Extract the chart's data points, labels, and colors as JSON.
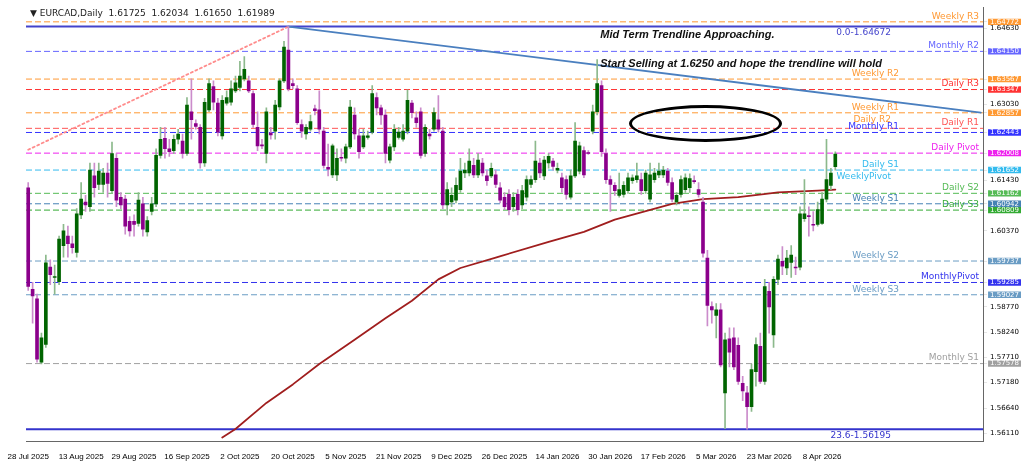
{
  "chart_data": {
    "type": "candlestick",
    "title": "▼ EURCAD,Daily  1.61725  1.62034  1.61650  1.61989",
    "categories": [
      "28 Jul 2025",
      null,
      null,
      null,
      null,
      null,
      null,
      null,
      null,
      null,
      null,
      null,
      "13 Aug 2025",
      null,
      null,
      null,
      null,
      null,
      null,
      null,
      null,
      null,
      null,
      null,
      "29 Aug 2025",
      null,
      null,
      null,
      null,
      null,
      null,
      null,
      null,
      null,
      null,
      null,
      "16 Sep 2025",
      null,
      null,
      null,
      null,
      null,
      null,
      null,
      null,
      null,
      null,
      null,
      "2 Oct 2025",
      null,
      null,
      null,
      null,
      null,
      null,
      null,
      null,
      null,
      null,
      null,
      "20 Oct 2025",
      null,
      null,
      null,
      null,
      null,
      null,
      null,
      null,
      null,
      null,
      null,
      "5 Nov 2025",
      null,
      null,
      null,
      null,
      null,
      null,
      null,
      null,
      null,
      null,
      null,
      "21 Nov 2025",
      null,
      null,
      null,
      null,
      null,
      null,
      null,
      null,
      null,
      null,
      null,
      "9 Dec 2025",
      null,
      null,
      null,
      null,
      null,
      null,
      null,
      null,
      null,
      null,
      null,
      "26 Dec 2025",
      null,
      null,
      null,
      null,
      null,
      null,
      null,
      null,
      null,
      null,
      null,
      "14 Jan 2026",
      null,
      null,
      null,
      null,
      null,
      null,
      null,
      null,
      null,
      null,
      null,
      "30 Jan 2026",
      null,
      null,
      null,
      null,
      null,
      null,
      null,
      null,
      null,
      null,
      null,
      "17 Feb 2026",
      null,
      null,
      null,
      null,
      null,
      null,
      null,
      null,
      null,
      null,
      null,
      "5 Mar 2026",
      null,
      null,
      null,
      null,
      null,
      null,
      null,
      null,
      null,
      null,
      null,
      "23 Mar 2026",
      null,
      null,
      null,
      null,
      null,
      null,
      null,
      null,
      null,
      null,
      null,
      "8 Apr 2026",
      null,
      null,
      null,
      null,
      null,
      null,
      null,
      null,
      null,
      null,
      null,
      null,
      null,
      null,
      null,
      null,
      null,
      null,
      null,
      null,
      null,
      null,
      null,
      null,
      null,
      null,
      null,
      null,
      null,
      null,
      null,
      null,
      null,
      null,
      null,
      null
    ],
    "ohlc": [
      [
        1.6128,
        1.6139,
        1.5912,
        1.592
      ],
      [
        1.5914,
        1.5929,
        1.5843,
        1.59
      ],
      [
        1.5894,
        1.5904,
        1.5761,
        1.5767
      ],
      [
        1.5761,
        1.5822,
        1.5757,
        1.5812
      ],
      [
        1.5798,
        1.5986,
        1.5792,
        1.597
      ],
      [
        1.5961,
        1.5976,
        1.5924,
        1.5945
      ],
      [
        1.5939,
        1.5965,
        1.5904,
        1.5941
      ],
      [
        1.593,
        1.6026,
        1.5924,
        1.602
      ],
      [
        1.6006,
        1.6051,
        1.5982,
        1.6037
      ],
      [
        1.6026,
        1.6047,
        1.5982,
        1.601
      ],
      [
        1.601,
        1.6026,
        1.599,
        1.6002
      ],
      [
        1.5992,
        1.6084,
        1.5982,
        1.6073
      ],
      [
        1.6071,
        1.6139,
        1.6063,
        1.6104
      ],
      [
        1.6098,
        1.6112,
        1.6078,
        1.6092
      ],
      [
        1.6088,
        1.618,
        1.6078,
        1.6165
      ],
      [
        1.6153,
        1.618,
        1.6108,
        1.6128
      ],
      [
        1.6135,
        1.618,
        1.6124,
        1.6163
      ],
      [
        1.6135,
        1.6169,
        1.6118,
        1.6159
      ],
      [
        1.6159,
        1.618,
        1.6108,
        1.6137
      ],
      [
        1.6122,
        1.6224,
        1.6116,
        1.62
      ],
      [
        1.619,
        1.62,
        1.6088,
        1.6102
      ],
      [
        1.6108,
        1.6118,
        1.6084,
        1.6092
      ],
      [
        1.6104,
        1.6112,
        1.603,
        1.6047
      ],
      [
        1.6057,
        1.6067,
        1.6026,
        1.6037
      ],
      [
        1.6057,
        1.6071,
        1.6026,
        1.6051
      ],
      [
        1.6053,
        1.6118,
        1.6047,
        1.6102
      ],
      [
        1.6094,
        1.6108,
        1.6026,
        1.6041
      ],
      [
        1.6035,
        1.6067,
        1.6026,
        1.6059
      ],
      [
        1.6078,
        1.6108,
        1.6071,
        1.6094
      ],
      [
        1.6094,
        1.621,
        1.6088,
        1.6196
      ],
      [
        1.6196,
        1.6255,
        1.619,
        1.623
      ],
      [
        1.6232,
        1.6255,
        1.619,
        1.621
      ],
      [
        1.621,
        1.623,
        1.6194,
        1.6204
      ],
      [
        1.6206,
        1.6239,
        1.62,
        1.623
      ],
      [
        1.623,
        1.6251,
        1.622,
        1.6241
      ],
      [
        1.6226,
        1.6241,
        1.619,
        1.62
      ],
      [
        1.62,
        1.6318,
        1.6196,
        1.6302
      ],
      [
        1.6288,
        1.6357,
        1.623,
        1.6271
      ],
      [
        1.6263,
        1.6271,
        1.6251,
        1.6257
      ],
      [
        1.6255,
        1.6261,
        1.6169,
        1.618
      ],
      [
        1.618,
        1.6316,
        1.6173,
        1.6308
      ],
      [
        1.6292,
        1.6357,
        1.6288,
        1.6347
      ],
      [
        1.6341,
        1.6353,
        1.6292,
        1.6308
      ],
      [
        1.6306,
        1.6316,
        1.6237,
        1.6245
      ],
      [
        1.6237,
        1.6322,
        1.623,
        1.6312
      ],
      [
        1.6306,
        1.6332,
        1.6302,
        1.6318
      ],
      [
        1.6308,
        1.6353,
        1.6302,
        1.6336
      ],
      [
        1.6332,
        1.6363,
        1.6328,
        1.6349
      ],
      [
        1.6339,
        1.6394,
        1.6332,
        1.6363
      ],
      [
        1.6357,
        1.6404,
        1.6353,
        1.6377
      ],
      [
        1.6353,
        1.6363,
        1.6328,
        1.6332
      ],
      [
        1.6326,
        1.6332,
        1.6255,
        1.6261
      ],
      [
        1.6255,
        1.6288,
        1.6206,
        1.6216
      ],
      [
        1.6218,
        1.623,
        1.621,
        1.6216
      ],
      [
        1.62,
        1.6296,
        1.618,
        1.6288
      ],
      [
        1.6243,
        1.6255,
        1.623,
        1.6239
      ],
      [
        1.6247,
        1.6312,
        1.623,
        1.6302
      ],
      [
        1.6298,
        1.6357,
        1.6292,
        1.6353
      ],
      [
        1.6353,
        1.6436,
        1.6349,
        1.6424
      ],
      [
        1.6418,
        1.6467,
        1.6332,
        1.6336
      ],
      [
        1.6347,
        1.6357,
        1.6336,
        1.6343
      ],
      [
        1.6336,
        1.6343,
        1.6261,
        1.6265
      ],
      [
        1.6261,
        1.6271,
        1.6234,
        1.6247
      ],
      [
        1.6241,
        1.6261,
        1.623,
        1.6255
      ],
      [
        1.6251,
        1.6281,
        1.6247,
        1.6267
      ],
      [
        1.6294,
        1.6302,
        1.6281,
        1.629
      ],
      [
        1.6292,
        1.6332,
        1.6241,
        1.6251
      ],
      [
        1.6247,
        1.6255,
        1.6169,
        1.6175
      ],
      [
        1.6171,
        1.622,
        1.6153,
        1.6167
      ],
      [
        1.6155,
        1.622,
        1.6149,
        1.6216
      ],
      [
        1.6155,
        1.621,
        1.6143,
        1.619
      ],
      [
        1.6192,
        1.621,
        1.6184,
        1.619
      ],
      [
        1.619,
        1.622,
        1.618,
        1.6214
      ],
      [
        1.6214,
        1.6312,
        1.621,
        1.6298
      ],
      [
        1.6281,
        1.6296,
        1.623,
        1.6241
      ],
      [
        1.6237,
        1.6251,
        1.619,
        1.6204
      ],
      [
        1.6214,
        1.6251,
        1.621,
        1.6237
      ],
      [
        1.6234,
        1.6247,
        1.623,
        1.6237
      ],
      [
        1.6245,
        1.6343,
        1.6241,
        1.6326
      ],
      [
        1.6318,
        1.6328,
        1.6281,
        1.6296
      ],
      [
        1.6296,
        1.6302,
        1.6261,
        1.6281
      ],
      [
        1.6281,
        1.6292,
        1.618,
        1.62
      ],
      [
        1.6186,
        1.622,
        1.618,
        1.6214
      ],
      [
        1.6214,
        1.6261,
        1.6206,
        1.6251
      ],
      [
        1.6234,
        1.6255,
        1.623,
        1.6245
      ],
      [
        1.623,
        1.6261,
        1.6226,
        1.6247
      ],
      [
        1.6247,
        1.6334,
        1.6241,
        1.6312
      ],
      [
        1.6306,
        1.6312,
        1.6275,
        1.6286
      ],
      [
        1.6275,
        1.6288,
        1.6255,
        1.6265
      ],
      [
        1.6288,
        1.6296,
        1.619,
        1.6196
      ],
      [
        1.62,
        1.6261,
        1.6194,
        1.6255
      ],
      [
        1.6241,
        1.6251,
        1.623,
        1.6237
      ],
      [
        1.6251,
        1.6296,
        1.6247,
        1.6286
      ],
      [
        1.6271,
        1.6322,
        1.6245,
        1.6251
      ],
      [
        1.6247,
        1.6255,
        1.6084,
        1.6092
      ],
      [
        1.6092,
        1.6139,
        1.6071,
        1.6124
      ],
      [
        1.6098,
        1.6128,
        1.6088,
        1.6112
      ],
      [
        1.6102,
        1.6149,
        1.6096,
        1.6133
      ],
      [
        1.6124,
        1.619,
        1.6118,
        1.6163
      ],
      [
        1.6159,
        1.618,
        1.6149,
        1.6165
      ],
      [
        1.6159,
        1.621,
        1.6153,
        1.6184
      ],
      [
        1.6175,
        1.619,
        1.6149,
        1.6155
      ],
      [
        1.6155,
        1.62,
        1.6149,
        1.6186
      ],
      [
        1.618,
        1.619,
        1.6153,
        1.6159
      ],
      [
        1.6153,
        1.6165,
        1.6133,
        1.6143
      ],
      [
        1.6153,
        1.618,
        1.6149,
        1.6169
      ],
      [
        1.6155,
        1.6165,
        1.6128,
        1.6135
      ],
      [
        1.6128,
        1.6139,
        1.6096,
        1.6102
      ],
      [
        1.6108,
        1.6118,
        1.6082,
        1.6088
      ],
      [
        1.6114,
        1.6124,
        1.6071,
        1.6082
      ],
      [
        1.6088,
        1.6118,
        1.6078,
        1.6108
      ],
      [
        1.6114,
        1.6124,
        1.6071,
        1.6082
      ],
      [
        1.6092,
        1.6133,
        1.6084,
        1.6122
      ],
      [
        1.6108,
        1.6153,
        1.61,
        1.6145
      ],
      [
        1.6135,
        1.6153,
        1.6128,
        1.6145
      ],
      [
        1.6145,
        1.6226,
        1.6139,
        1.6184
      ],
      [
        1.618,
        1.619,
        1.6149,
        1.6159
      ],
      [
        1.6153,
        1.6194,
        1.6145,
        1.6186
      ],
      [
        1.618,
        1.62,
        1.6169,
        1.6194
      ],
      [
        1.6184,
        1.619,
        1.6165,
        1.6173
      ],
      [
        1.6165,
        1.618,
        1.6159,
        1.6169
      ],
      [
        1.6149,
        1.6159,
        1.6118,
        1.6128
      ],
      [
        1.6145,
        1.6153,
        1.6104,
        1.6114
      ],
      [
        1.6108,
        1.6165,
        1.6104,
        1.6153
      ],
      [
        1.6153,
        1.6265,
        1.6149,
        1.6226
      ],
      [
        1.6163,
        1.6224,
        1.6157,
        1.6216
      ],
      [
        1.6206,
        1.6214,
        1.6149,
        1.6155
      ],
      [
        1.6202,
        1.6206,
        1.6198,
        1.62
      ],
      [
        1.6247,
        1.6302,
        1.6241,
        1.6288
      ],
      [
        1.6288,
        1.6398,
        1.6281,
        1.6347
      ],
      [
        1.6343,
        1.6353,
        1.6194,
        1.6204
      ],
      [
        1.62,
        1.621,
        1.6137,
        1.6145
      ],
      [
        1.6145,
        1.6153,
        1.6078,
        1.6135
      ],
      [
        1.6133,
        1.6139,
        1.6112,
        1.6122
      ],
      [
        1.6112,
        1.6159,
        1.6108,
        1.6124
      ],
      [
        1.6114,
        1.6141,
        1.6108,
        1.6133
      ],
      [
        1.6122,
        1.6159,
        1.6116,
        1.6149
      ],
      [
        1.6143,
        1.6155,
        1.6137,
        1.6149
      ],
      [
        1.6145,
        1.618,
        1.6139,
        1.6153
      ],
      [
        1.6145,
        1.6159,
        1.6114,
        1.6122
      ],
      [
        1.6122,
        1.6165,
        1.6116,
        1.6159
      ],
      [
        1.6104,
        1.618,
        1.6098,
        1.6155
      ],
      [
        1.6145,
        1.6169,
        1.6139,
        1.6159
      ],
      [
        1.6155,
        1.618,
        1.6149,
        1.6163
      ],
      [
        1.6155,
        1.6173,
        1.6149,
        1.6165
      ],
      [
        1.6163,
        1.6169,
        1.6133,
        1.6139
      ],
      [
        1.6139,
        1.6149,
        1.6098,
        1.6104
      ],
      [
        1.6098,
        1.6118,
        1.6092,
        1.6112
      ],
      [
        1.6114,
        1.6153,
        1.6108,
        1.6145
      ],
      [
        1.6124,
        1.6157,
        1.6118,
        1.6149
      ],
      [
        1.6128,
        1.6157,
        1.6118,
        1.6147
      ],
      [
        1.6143,
        1.6153,
        1.6137,
        1.6141
      ],
      [
        1.6124,
        1.6139,
        1.6108,
        1.6114
      ],
      [
        1.6098,
        1.6108,
        1.5982,
        1.599
      ],
      [
        1.598,
        1.5996,
        1.5837,
        1.588
      ],
      [
        1.5878,
        1.5888,
        1.5843,
        1.5871
      ],
      [
        1.5859,
        1.5884,
        1.5812,
        1.5871
      ],
      [
        1.5871,
        1.5884,
        1.5751,
        1.5755
      ],
      [
        1.5696,
        1.5822,
        1.5621,
        1.5808
      ],
      [
        1.581,
        1.5833,
        1.5751,
        1.5782
      ],
      [
        1.5812,
        1.5833,
        1.5745,
        1.5751
      ],
      [
        1.5796,
        1.5812,
        1.5714,
        1.572
      ],
      [
        1.5716,
        1.5731,
        1.568,
        1.57
      ],
      [
        1.5696,
        1.571,
        1.562,
        1.5667
      ],
      [
        1.5667,
        1.5757,
        1.5657,
        1.5745
      ],
      [
        1.5741,
        1.5812,
        1.571,
        1.5798
      ],
      [
        1.5794,
        1.5822,
        1.5716,
        1.572
      ],
      [
        1.572,
        1.5935,
        1.5714,
        1.592
      ],
      [
        1.591,
        1.5929,
        1.5822,
        1.5877
      ],
      [
        1.5818,
        1.5941,
        1.5792,
        1.5935
      ],
      [
        1.5935,
        1.5986,
        1.5924,
        1.5978
      ],
      [
        1.5973,
        1.6004,
        1.5945,
        1.5963
      ],
      [
        1.5959,
        1.5996,
        1.5945,
        1.598
      ],
      [
        1.5971,
        1.6006,
        1.5939,
        1.5986
      ],
      [
        1.5961,
        1.5982,
        1.5945,
        1.5959
      ],
      [
        1.5961,
        1.6088,
        1.5955,
        1.6073
      ],
      [
        1.6063,
        1.6145,
        1.6057,
        1.6073
      ],
      [
        1.6069,
        1.6088,
        1.6026,
        1.6067
      ],
      [
        1.6051,
        1.6078,
        1.6037,
        1.6049
      ],
      [
        1.6051,
        1.6098,
        1.6047,
        1.6082
      ],
      [
        1.6053,
        1.6118,
        1.6051,
        1.6104
      ],
      [
        1.6104,
        1.623,
        1.6098,
        1.6145
      ],
      [
        1.6133,
        1.6169,
        1.6124,
        1.6159
      ],
      [
        1.61725,
        1.62034,
        1.6165,
        1.61989
      ],
      null,
      null,
      null,
      null,
      null,
      null,
      null,
      null,
      null,
      null,
      null,
      null,
      null,
      null,
      null,
      null,
      null,
      null,
      null,
      null,
      null,
      null,
      null,
      null,
      null,
      null,
      null,
      null,
      null,
      null,
      null,
      null,
      null
    ],
    "colors": [
      "#8b008b",
      "#8b008b",
      "#8b008b",
      "#006400",
      "#006400",
      "#8b008b",
      "#006400",
      "#006400",
      "#006400",
      "#8b008b",
      "#8b008b",
      "#006400",
      "#006400",
      "#8b008b",
      "#006400",
      "#8b008b",
      "#006400",
      "#006400",
      "#8b008b",
      "#006400",
      "#8b008b",
      "#8b008b",
      "#8b008b",
      "#8b008b",
      "#8b008b",
      "#006400",
      "#8b008b",
      "#006400",
      "#006400",
      "#006400",
      "#006400",
      "#8b008b",
      "#8b008b",
      "#006400",
      "#006400",
      "#8b008b",
      "#006400",
      "#8b008b",
      "#8b008b",
      "#8b008b",
      "#006400",
      "#006400",
      "#8b008b",
      "#8b008b",
      "#006400",
      "#006400",
      "#006400",
      "#006400",
      "#006400",
      "#006400",
      "#8b008b",
      "#8b008b",
      "#8b008b",
      "#8b008b",
      "#006400",
      "#8b008b",
      "#006400",
      "#006400",
      "#006400",
      "#8b008b",
      "#8b008b",
      "#8b008b",
      "#8b008b",
      "#006400",
      "#006400",
      "#8b008b",
      "#8b008b",
      "#8b008b",
      "#8b008b",
      "#006400",
      "#006400",
      "#8b008b",
      "#006400",
      "#006400",
      "#8b008b",
      "#8b008b",
      "#006400",
      "#006400",
      "#006400",
      "#8b008b",
      "#8b008b",
      "#8b008b",
      "#006400",
      "#006400",
      "#006400",
      "#006400",
      "#006400",
      "#8b008b",
      "#8b008b",
      "#8b008b",
      "#006400",
      "#8b008b",
      "#006400",
      "#8b008b",
      "#8b008b",
      "#006400",
      "#006400",
      "#006400",
      "#006400",
      "#006400",
      "#006400",
      "#8b008b",
      "#006400",
      "#8b008b",
      "#8b008b",
      "#006400",
      "#8b008b",
      "#8b008b",
      "#8b008b",
      "#8b008b",
      "#006400",
      "#8b008b",
      "#006400",
      "#006400",
      "#006400",
      "#006400",
      "#8b008b",
      "#006400",
      "#006400",
      "#8b008b",
      "#006400",
      "#8b008b",
      "#8b008b",
      "#006400",
      "#006400",
      "#006400",
      "#8b008b",
      "#8b008b",
      "#006400",
      "#006400",
      "#8b008b",
      "#8b008b",
      "#8b008b",
      "#8b008b",
      "#006400",
      "#006400",
      "#006400",
      "#006400",
      "#006400",
      "#8b008b",
      "#006400",
      "#006400",
      "#006400",
      "#006400",
      "#006400",
      "#8b008b",
      "#8b008b",
      "#006400",
      "#006400",
      "#006400",
      "#006400",
      "#8b008b",
      "#8b008b",
      "#8b008b",
      "#8b008b",
      "#8b008b",
      "#006400",
      "#8b008b",
      "#006400",
      "#8b008b",
      "#8b008b",
      "#8b008b",
      "#8b008b",
      "#8b008b",
      "#006400",
      "#006400",
      "#8b008b",
      "#006400",
      "#8b008b",
      "#006400",
      "#006400",
      "#8b008b",
      "#006400",
      "#006400",
      "#8b008b",
      "#006400",
      "#006400",
      "#8b008b",
      "#8b008b",
      "#006400",
      "#006400",
      "#006400",
      "#006400",
      "#006400",
      null,
      null,
      null,
      null,
      null,
      null,
      null,
      null,
      null,
      null,
      null,
      null,
      null,
      null,
      null,
      null,
      null,
      null,
      null,
      null,
      null,
      null,
      null,
      null,
      null,
      null,
      null,
      null,
      null,
      null,
      null,
      null,
      null
    ],
    "series": [
      {
        "type": "line",
        "color": "#a01e1e",
        "values": [
          null,
          null,
          null,
          null,
          null,
          null,
          null,
          null,
          null,
          null,
          null,
          null,
          null,
          null,
          null,
          null,
          null,
          null,
          null,
          null,
          null,
          null,
          null,
          null,
          null,
          null,
          null,
          null,
          null,
          null,
          null,
          null,
          null,
          null,
          null,
          null,
          null,
          null,
          null,
          null,
          null,
          null,
          null,
          null,
          1.5602,
          null,
          null,
          1.562,
          null,
          null,
          null,
          null,
          null,
          null,
          1.5675,
          null,
          null,
          null,
          null,
          null,
          1.5714,
          null,
          null,
          null,
          null,
          null,
          1.5757,
          null,
          null,
          null,
          null,
          null,
          null,
          null,
          1.5808,
          null,
          null,
          null,
          null,
          null,
          null,
          1.5853,
          null,
          null,
          null,
          null,
          null,
          1.589,
          null,
          null,
          null,
          null,
          null,
          1.5935,
          null,
          null,
          null,
          null,
          1.5959,
          null,
          null,
          null,
          null,
          null,
          null,
          null,
          1.5981,
          null,
          null,
          null,
          null,
          null,
          null,
          null,
          null,
          null,
          null,
          null,
          1.6014,
          null,
          null,
          null,
          null,
          null,
          null,
          null,
          1.6035,
          null,
          null,
          null,
          null,
          null,
          null,
          1.6061,
          null,
          null,
          null,
          null,
          null,
          null,
          null,
          null,
          null,
          null,
          null,
          null,
          1.6094,
          null,
          null,
          null,
          null,
          null,
          null,
          1.6104,
          null,
          null,
          null,
          null,
          null,
          null,
          null,
          1.6108,
          null,
          null,
          null,
          null,
          null,
          null,
          null,
          null,
          1.6118,
          null,
          null,
          null,
          null,
          null,
          null,
          null,
          null,
          1.6122,
          null,
          null,
          null,
          1.6124,
          null,
          null,
          null,
          null,
          null,
          null,
          null,
          null,
          null,
          null,
          null,
          null,
          null,
          null,
          null,
          null,
          null,
          null,
          null,
          null,
          null,
          null,
          null,
          null,
          null,
          null,
          null,
          null,
          null,
          null,
          null,
          null,
          null
        ]
      },
      {
        "type": "line",
        "color": "#4a7fbf",
        "values": [
          null,
          null,
          null,
          null,
          null,
          null,
          null,
          null,
          null,
          null,
          null,
          null,
          null,
          null,
          null,
          null,
          null,
          null,
          null,
          null,
          null,
          null,
          null,
          null,
          null,
          null,
          null,
          null,
          null,
          null,
          null,
          null,
          null,
          null,
          null,
          null,
          null,
          null,
          null,
          null,
          null,
          null,
          null,
          null,
          null,
          null,
          null,
          null,
          null,
          null,
          null,
          null,
          null,
          null,
          null,
          null,
          null,
          null,
          null,
          1.6467,
          null,
          null,
          null,
          null,
          null,
          null,
          null,
          null,
          null,
          null,
          null,
          null,
          null,
          null,
          null,
          null,
          null,
          null,
          null,
          null,
          null,
          null,
          null,
          null,
          null,
          null,
          null,
          null,
          null,
          null,
          null,
          null,
          null,
          null,
          null,
          null,
          null,
          null,
          null,
          null,
          null,
          null,
          null,
          null,
          null,
          null,
          null,
          null,
          null,
          null,
          null,
          null,
          null,
          null,
          null,
          null,
          null,
          null,
          null,
          null,
          null,
          null,
          null,
          null,
          null,
          null,
          null,
          null,
          null,
          null,
          null,
          null,
          null,
          null,
          null,
          null,
          null,
          null,
          null,
          null,
          null,
          null,
          null,
          null,
          null,
          null,
          null,
          null,
          null,
          null,
          null,
          null,
          null,
          null,
          null,
          null,
          null,
          null,
          null,
          null,
          null,
          null,
          null,
          null,
          null,
          null,
          null,
          null,
          null,
          null,
          null,
          null,
          null,
          null,
          null,
          null,
          null,
          null,
          null,
          null,
          null,
          null,
          null,
          null,
          null,
          null,
          null,
          null,
          null,
          null,
          null,
          null,
          null,
          null,
          null,
          null,
          null,
          null,
          null,
          null,
          null,
          null,
          null,
          null,
          null,
          null,
          null,
          null,
          null,
          null,
          null,
          null,
          null,
          null,
          null,
          null,
          1.6286
        ]
      },
      {
        "type": "line",
        "color": "#ff8c8c",
        "line_style": "dotted",
        "values": [
          1.6208,
          null,
          null,
          null,
          null,
          null,
          null,
          null,
          null,
          null,
          null,
          null,
          null,
          null,
          null,
          null,
          null,
          null,
          null,
          null,
          null,
          null,
          null,
          null,
          null,
          null,
          null,
          null,
          null,
          null,
          null,
          null,
          null,
          null,
          null,
          null,
          null,
          null,
          null,
          null,
          null,
          null,
          null,
          null,
          null,
          null,
          null,
          null,
          null,
          null,
          null,
          null,
          null,
          null,
          null,
          null,
          null,
          null,
          null,
          1.6467,
          null,
          null,
          null,
          null,
          null,
          null,
          null,
          null,
          null,
          null,
          null,
          null,
          null,
          null,
          null,
          null,
          null,
          null,
          null,
          null,
          null,
          null,
          null,
          null,
          null,
          null,
          null,
          null,
          null,
          null,
          null,
          null,
          null,
          null,
          null,
          null,
          null,
          null,
          null,
          null,
          null,
          null,
          null,
          null,
          null,
          null,
          null,
          null,
          null,
          null,
          null,
          null,
          null,
          null,
          null,
          null,
          null,
          null,
          null,
          null,
          null,
          null,
          null,
          null,
          null,
          null,
          null,
          null,
          null,
          null,
          null,
          null,
          null,
          null,
          null,
          null,
          null,
          null,
          null,
          null,
          null,
          null,
          null,
          null,
          null,
          null,
          null,
          null,
          null,
          null,
          null,
          null,
          null,
          null,
          null,
          null,
          null,
          null,
          null,
          null,
          null,
          null,
          null,
          null,
          null,
          null,
          null,
          null,
          null,
          null,
          null,
          null,
          null,
          null,
          null,
          null,
          null,
          null,
          null,
          null,
          null,
          null,
          null,
          null,
          null,
          null,
          null,
          null,
          null,
          null,
          null,
          null,
          null,
          null,
          null,
          null,
          null,
          null,
          null,
          null,
          null,
          null,
          null,
          null,
          null,
          null,
          null,
          null,
          null,
          null,
          null,
          null,
          null,
          null,
          null,
          null,
          null
        ]
      }
    ],
    "ylim": [
      1.5594,
      1.6508
    ],
    "yticks": [
      {
        "value": 1.6463,
        "label": "1.64630"
      },
      {
        "value": 1.6303,
        "label": "1.63030"
      },
      {
        "value": 1.6143,
        "label": "1.61430"
      },
      {
        "value": 1.6037,
        "label": "1.60370"
      },
      {
        "value": 1.5877,
        "label": "1.58770"
      },
      {
        "value": 1.5824,
        "label": "1.58240"
      },
      {
        "value": 1.5771,
        "label": "1.57710"
      },
      {
        "value": 1.5718,
        "label": "1.57180"
      },
      {
        "value": 1.5664,
        "label": "1.56640"
      },
      {
        "value": 1.5611,
        "label": "1.56110"
      },
      {
        "value": 1.64772,
        "label": "1.64772"
      },
      {
        "value": 1.6415,
        "label": "1.64150"
      },
      {
        "value": 1.63567,
        "label": "1.63567"
      },
      {
        "value": 1.63347,
        "label": "1.63347"
      },
      {
        "value": 1.62857,
        "label": "1.62857"
      },
      {
        "value": 1.62443,
        "label": "1.62443"
      },
      {
        "value": 1.62008,
        "label": "1.62008"
      },
      {
        "value": 1.61652,
        "label": "1.61652"
      },
      {
        "value": 1.61162,
        "label": "1.61162"
      },
      {
        "value": 1.60942,
        "label": "1.60942"
      },
      {
        "value": 1.60809,
        "label": "1.60809"
      },
      {
        "value": 1.59737,
        "label": "1.59737"
      },
      {
        "value": 1.59285,
        "label": "1.59285"
      },
      {
        "value": 1.59027,
        "label": "1.59027"
      },
      {
        "value": 1.57578,
        "label": "1.57578"
      }
    ],
    "ref_lines": [
      {
        "axis": "y",
        "value": 1.64772,
        "label": "Weekly R3",
        "color": "#ff9933",
        "line_style": "dashed"
      },
      {
        "axis": "y",
        "value": 1.64672,
        "color": "#4444cc",
        "line_style": "solid"
      },
      {
        "axis": "y",
        "value": 1.6415,
        "label": "Monthly R2",
        "color": "#6666ff",
        "line_style": "dashed"
      },
      {
        "axis": "y",
        "value": 1.63567,
        "label": "Weekly R2",
        "color": "#ff9933",
        "line_style": "dashed"
      },
      {
        "axis": "y",
        "value": 1.63347,
        "label": "Daily R3",
        "color": "#ff3333",
        "line_style": "dashed"
      },
      {
        "axis": "y",
        "value": 1.62857,
        "label": "Weekly R1",
        "color": "#ff9933",
        "line_style": "dashed"
      },
      {
        "axis": "y",
        "value": 1.6253,
        "label": "Daily R1",
        "color": "#ff5555",
        "line_style": "dashed"
      },
      {
        "axis": "y",
        "value": 1.62443,
        "label": "Monthly R1",
        "color": "#3333ff",
        "line_style": "dashed"
      },
      {
        "axis": "y",
        "value": 1.62008,
        "label": "Daily Pivot",
        "color": "#ee22ee",
        "line_style": "dashed"
      },
      {
        "axis": "y",
        "value": 1.61652,
        "label": "Daily S1",
        "color": "#33bbee",
        "line_style": "dashed"
      },
      {
        "axis": "y",
        "value": 1.61162,
        "label": "Daily S2",
        "color": "#55bb55",
        "line_style": "dashed"
      },
      {
        "axis": "y",
        "value": 1.60942,
        "label": "Weekly S1",
        "color": "#4682b4",
        "line_style": "dashed"
      },
      {
        "axis": "y",
        "value": 1.60809,
        "label": "Daily S3",
        "color": "#33aa33",
        "line_style": "dashed"
      },
      {
        "axis": "y",
        "value": 1.59737,
        "label": "Weekly S2",
        "color": "#6a9cc4",
        "line_style": "dashed"
      },
      {
        "axis": "y",
        "value": 1.59285,
        "label": "MonthlyPivot",
        "color": "#3333ee",
        "line_style": "dashed"
      },
      {
        "axis": "y",
        "value": 1.59027,
        "label": "Weekly S3",
        "color": "#6a9cc4",
        "line_style": "dashed"
      },
      {
        "axis": "y",
        "value": 1.57578,
        "label": "Monthly S1",
        "color": "#a0a0a0",
        "line_style": "dashed"
      },
      {
        "axis": "y",
        "value": 1.56195,
        "color": "#3333cc",
        "line_style": "solid"
      }
    ],
    "annotations": [
      "Mid Term Trendline Approaching.",
      "Start Selling at 1.6250 and hope the trendline will hold",
      {
        "text": "0.0-1.64672",
        "y": 1.64672
      },
      {
        "text": "Daily R2",
        "y": 1.62857
      },
      {
        "text": "WeeklyPivot",
        "y": 1.61652
      },
      {
        "text": "23.6-1.56195",
        "y": 1.56195
      }
    ],
    "marker": "none"
  }
}
